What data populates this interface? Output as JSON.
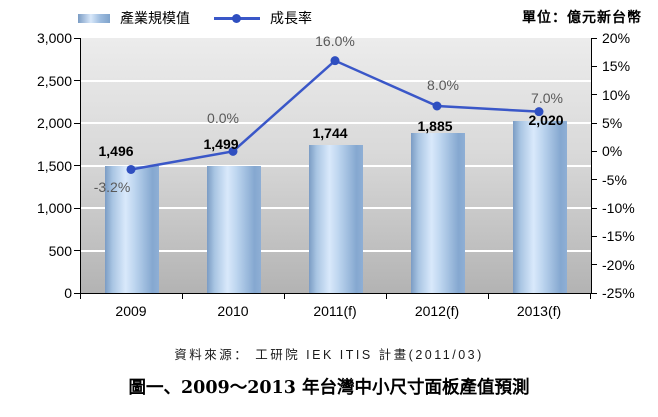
{
  "legend": {
    "bar_label": "產業規模值",
    "line_label": "成長率"
  },
  "unit_label": "單位：億元新台幣",
  "source_note": "資料來源： 工研院 IEK ITIS 計畫(2011/03)",
  "figure_caption": "圖一、2009～2013 年台灣中小尺寸面板產值預測",
  "colors": {
    "line": "#3a57c8",
    "marker": "#2f4fc0",
    "bar_edge": "#7b9cc4",
    "bar_light": "#d8e8fa",
    "line_label_gray": "#595959",
    "plot_bg_top": "#ececec",
    "plot_bg_bottom": "#b3b3b3",
    "gridline": "#ffffff"
  },
  "chart_data": {
    "type": "bar",
    "subtype": "combo bar + line, dual axis",
    "categories": [
      "2009",
      "2010",
      "2011(f)",
      "2012(f)",
      "2013(f)"
    ],
    "series": [
      {
        "name": "產業規模值",
        "type": "bar",
        "axis": "left",
        "values": [
          1496,
          1499,
          1744,
          1885,
          2020
        ],
        "labels": [
          "1,496",
          "1,499",
          "1,744",
          "1,885",
          "2,020"
        ]
      },
      {
        "name": "成長率",
        "type": "line",
        "axis": "right",
        "values": [
          -3.2,
          0.0,
          16.0,
          8.0,
          7.0
        ],
        "labels": [
          "-3.2%",
          "0.0%",
          "16.0%",
          "8.0%",
          "7.0%"
        ]
      }
    ],
    "left_axis": {
      "min": 0,
      "max": 3000,
      "step": 500,
      "tick_labels": [
        "3,000",
        "2,500",
        "2,000",
        "1,500",
        "1,000",
        "500",
        "0"
      ]
    },
    "right_axis": {
      "min": -25,
      "max": 20,
      "step": 5,
      "tick_labels": [
        "20%",
        "15%",
        "10%",
        "5%",
        "0%",
        "-5%",
        "-10%",
        "-15%",
        "-20%",
        "-25%"
      ]
    },
    "grid": "horizontal white lines at left-axis majors",
    "legend_position": "top-left"
  }
}
